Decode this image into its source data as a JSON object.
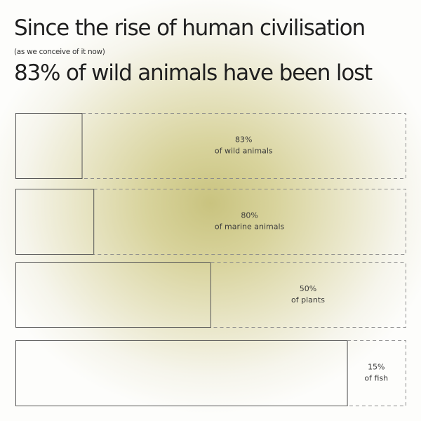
{
  "header": {
    "title": "Since the rise of human civilisation",
    "subtitle": "(as we conceive of it now)",
    "headline": "83% of wild animals have been lost"
  },
  "chart_data": {
    "type": "bar",
    "orientation": "horizontal",
    "stacked_remaining_vs_lost": true,
    "categories": [
      "of wild animals",
      "of marine animals",
      "of plants",
      "of fish"
    ],
    "series": [
      {
        "values": [
          83,
          80,
          50,
          15
        ]
      }
    ],
    "value_labels": [
      "83%",
      "80%",
      "50%",
      "15%"
    ],
    "xlim": [
      0,
      100
    ],
    "solid_part": "remaining",
    "dashed_part": "lost",
    "colors": {
      "outline": "#555555",
      "dash": "#8a8a8a",
      "glow": "#c9c37f"
    }
  }
}
